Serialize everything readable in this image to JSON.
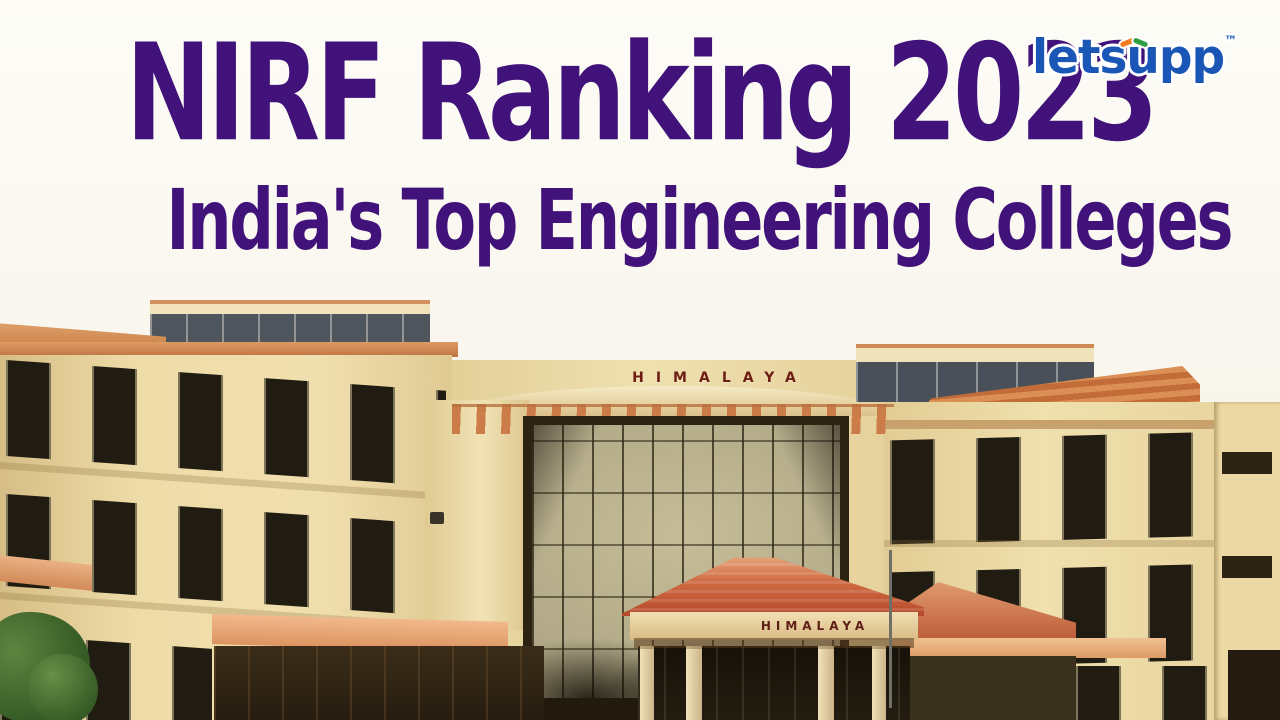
{
  "graphic": {
    "headline": "NIRF Ranking 2023",
    "subheadline": "India's Top Engineering Colleges",
    "headline_color": "#41127a",
    "background_color": "#f9f7f0"
  },
  "brand": {
    "name": "letsupp",
    "trademark": "™",
    "color": "#1a56b5",
    "accent_left_color": "#f07c1f",
    "accent_right_color": "#2f9e45"
  },
  "building": {
    "sign_top": "HIMALAYA",
    "sign_entrance": "HIMALAYA",
    "sign_color": "#6e1d12",
    "wall_color": "#ecd9a6",
    "roof_color": "#c2613a",
    "glass_color": "#b2aa88",
    "tree_color": "#3f6b2e"
  }
}
